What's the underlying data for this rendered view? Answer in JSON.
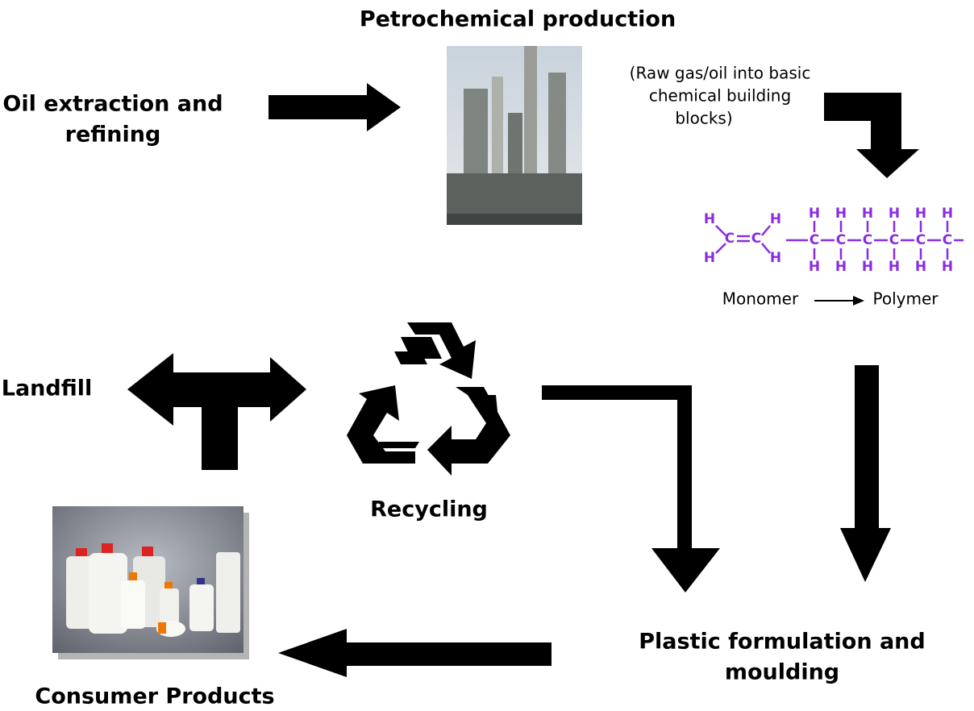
{
  "nodes": {
    "petrochemical": {
      "label": "Petrochemical production",
      "note": [
        "(Raw gas/oil into basic",
        "chemical building",
        "blocks)"
      ]
    },
    "oil_extraction": {
      "label": [
        "Oil extraction and",
        "refining"
      ]
    },
    "landfill": {
      "label": "Landfill"
    },
    "recycling": {
      "label": "Recycling"
    },
    "plastic_formulation": {
      "label": [
        "Plastic formulation and",
        "moulding"
      ]
    },
    "consumer_products": {
      "label": "Consumer Products"
    }
  },
  "chemistry": {
    "hydrogen": "H",
    "carbon": "C",
    "monomer": "Monomer",
    "polymer": "Polymer"
  }
}
